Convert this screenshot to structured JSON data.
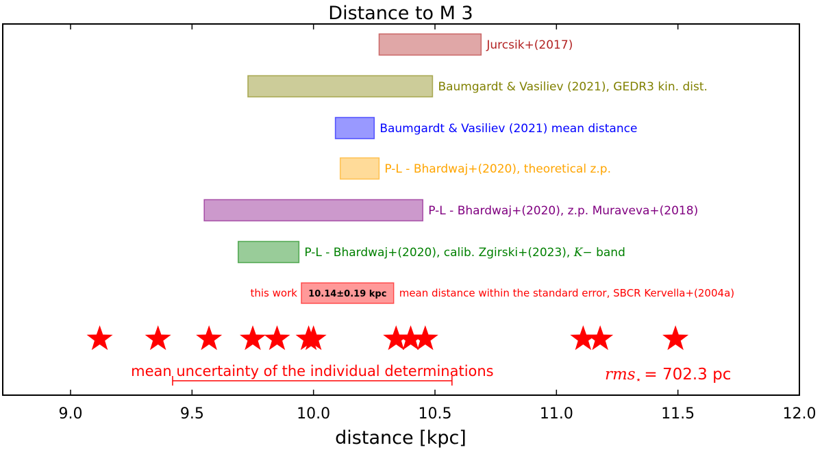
{
  "chart_data": {
    "type": "interval",
    "title": "Distance to M 3",
    "xlabel": "distance [kpc]",
    "xlim": [
      8.7,
      12.0
    ],
    "xticks": [
      "9.0",
      "9.5",
      "10.0",
      "10.5",
      "11.0",
      "11.5",
      "12.0"
    ],
    "grid": false,
    "ranges": [
      {
        "label": "Jurcsik+(2017)",
        "min": 10.27,
        "max": 10.69,
        "color": "#b22222"
      },
      {
        "label": "Baumgardt & Vasiliev (2021), GEDR3 kin. dist.",
        "min": 9.73,
        "max": 10.49,
        "color": "#808000"
      },
      {
        "label": "Baumgardt & Vasiliev (2021) mean distance",
        "min": 10.09,
        "max": 10.25,
        "color": "#0000ff"
      },
      {
        "label": "P-L - Bhardwaj+(2020), theoretical z.p.",
        "min": 10.11,
        "max": 10.27,
        "color": "#ffa500"
      },
      {
        "label": "P-L - Bhardwaj+(2020), z.p. Muraveva+(2018)",
        "min": 9.55,
        "max": 10.45,
        "color": "#800080"
      },
      {
        "label_prefix": "P-L - Bhardwaj+(2020), calib. Zgirski+(2023),",
        "label_math": "K−",
        "label_suffix": "band",
        "min": 9.69,
        "max": 9.94,
        "color": "#008000"
      }
    ],
    "this_work": {
      "label_left": "this work",
      "value_label": "10.14±0.19 kpc",
      "label_right": "mean distance within the standard error, SBCR Kervella+(2004a)",
      "min": 9.95,
      "max": 10.33,
      "color": "#ff0000"
    },
    "individual_distances": [
      9.12,
      9.36,
      9.57,
      9.75,
      9.85,
      9.98,
      10.0,
      10.34,
      10.4,
      10.46,
      11.11,
      11.18,
      11.49
    ],
    "mean_uncertainty": {
      "label": "mean uncertainty of the individual determinations",
      "min": 9.42,
      "max": 10.57
    },
    "rms": {
      "label_math": "rms",
      "subscript": "⋆",
      "value_text": "= 702.3 pc"
    }
  }
}
